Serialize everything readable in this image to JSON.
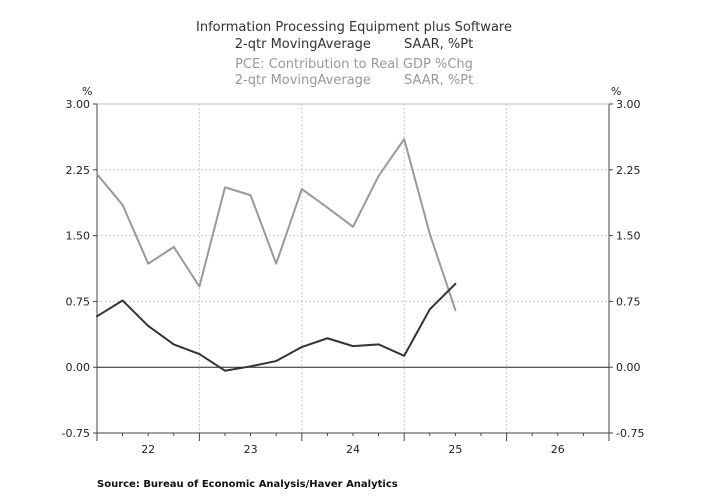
{
  "chart_data": {
    "type": "line",
    "title_lines": [
      "Information Processing Equipment plus Software",
      "2-qtr MovingAverage        SAAR, %Pt"
    ],
    "subtitle_lines": [
      "PCE: Contribution to Real GDP %Chg",
      "2-qtr MovingAverage        SAAR, %Pt"
    ],
    "y_unit_left": "%",
    "y_unit_right": "%",
    "ylim": [
      -0.75,
      3.0
    ],
    "yticks": [
      3.0,
      2.25,
      1.5,
      0.75,
      0.0,
      -0.75
    ],
    "ytick_labels": [
      "3.00",
      "2.25",
      "1.50",
      "0.75",
      "0.00",
      "-0.75"
    ],
    "x_period_labels": [
      "22",
      "23",
      "24",
      "25",
      "26"
    ],
    "x_quarter_start": 0,
    "x_quarter_end": 20,
    "series": [
      {
        "name": "PCE: Contribution to Real GDP %Chg, 2-qtr MovingAverage",
        "color": "#999999",
        "x": [
          0,
          1,
          2,
          3,
          4,
          5,
          6,
          7,
          8,
          9,
          10,
          11,
          12,
          13,
          14
        ],
        "values": [
          2.2,
          1.85,
          1.18,
          1.37,
          0.92,
          2.05,
          1.96,
          1.18,
          2.03,
          1.82,
          1.6,
          2.18,
          2.6,
          1.52,
          0.65
        ]
      },
      {
        "name": "Information Processing Equipment plus Software, 2-qtr MovingAverage",
        "color": "#333333",
        "x": [
          0,
          1,
          2,
          3,
          4,
          5,
          6,
          7,
          8,
          9,
          10,
          11,
          12,
          13,
          14
        ],
        "values": [
          0.58,
          0.76,
          0.47,
          0.26,
          0.15,
          -0.04,
          0.01,
          0.07,
          0.23,
          0.33,
          0.24,
          0.26,
          0.13,
          0.66,
          0.95
        ]
      }
    ],
    "source": "Source:  Bureau of Economic Analysis/Haver Analytics"
  }
}
